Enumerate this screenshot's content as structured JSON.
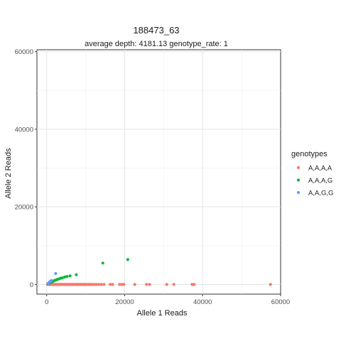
{
  "chart_data": {
    "type": "scatter",
    "title": "188473_63",
    "subtitle": "average depth:  4181.13  genotype_rate:  1",
    "xlabel": "Allele 1 Reads",
    "ylabel": "Allele 2 Reads",
    "xlim": [
      -2500,
      60000
    ],
    "ylim": [
      -2500,
      60500
    ],
    "xticks": [
      0,
      20000,
      40000,
      60000
    ],
    "yticks": [
      0,
      20000,
      40000,
      60000
    ],
    "xtick_labels": [
      "0",
      "20000",
      "40000",
      "60000"
    ],
    "ytick_labels": [
      "0",
      "20000",
      "40000",
      "60000"
    ],
    "grid": true,
    "legend": {
      "title": "genotypes",
      "placement": "right"
    },
    "series": [
      {
        "name": "A,A,A,A",
        "color": "#F8766D",
        "points": [
          [
            200,
            0
          ],
          [
            500,
            0
          ],
          [
            800,
            0
          ],
          [
            1100,
            0
          ],
          [
            1400,
            0
          ],
          [
            1700,
            0
          ],
          [
            2000,
            0
          ],
          [
            2300,
            0
          ],
          [
            2600,
            0
          ],
          [
            2900,
            0
          ],
          [
            3200,
            0
          ],
          [
            3500,
            0
          ],
          [
            3800,
            0
          ],
          [
            4100,
            0
          ],
          [
            4400,
            0
          ],
          [
            4700,
            0
          ],
          [
            5000,
            0
          ],
          [
            5300,
            0
          ],
          [
            5600,
            0
          ],
          [
            5900,
            0
          ],
          [
            6200,
            0
          ],
          [
            6500,
            0
          ],
          [
            6800,
            0
          ],
          [
            7100,
            0
          ],
          [
            7400,
            0
          ],
          [
            7700,
            0
          ],
          [
            8000,
            0
          ],
          [
            8300,
            0
          ],
          [
            8600,
            0
          ],
          [
            8900,
            0
          ],
          [
            9200,
            0
          ],
          [
            9500,
            0
          ],
          [
            9800,
            0
          ],
          [
            10200,
            0
          ],
          [
            10600,
            0
          ],
          [
            11000,
            0
          ],
          [
            11400,
            0
          ],
          [
            11800,
            0
          ],
          [
            12300,
            0
          ],
          [
            12800,
            0
          ],
          [
            13400,
            0
          ],
          [
            14000,
            0
          ],
          [
            14700,
            0
          ],
          [
            16300,
            0
          ],
          [
            16900,
            0
          ],
          [
            18700,
            0
          ],
          [
            19300,
            0
          ],
          [
            19800,
            0
          ],
          [
            22600,
            0
          ],
          [
            25600,
            0
          ],
          [
            26400,
            0
          ],
          [
            30800,
            0
          ],
          [
            32600,
            0
          ],
          [
            37300,
            0
          ],
          [
            37800,
            0
          ],
          [
            57400,
            0
          ]
        ]
      },
      {
        "name": "A,A,A,G",
        "color": "#00BA38",
        "points": [
          [
            300,
            150
          ],
          [
            600,
            300
          ],
          [
            900,
            450
          ],
          [
            1200,
            600
          ],
          [
            1500,
            750
          ],
          [
            1800,
            900
          ],
          [
            2100,
            1050
          ],
          [
            2400,
            1150
          ],
          [
            2800,
            1300
          ],
          [
            3200,
            1450
          ],
          [
            3600,
            1600
          ],
          [
            4000,
            1700
          ],
          [
            4600,
            1900
          ],
          [
            5200,
            2050
          ],
          [
            6000,
            2200
          ],
          [
            7600,
            2500
          ],
          [
            14400,
            5500
          ],
          [
            20800,
            6400
          ]
        ]
      },
      {
        "name": "A,A,G,G",
        "color": "#619CFF",
        "points": [
          [
            300,
            250
          ],
          [
            600,
            500
          ],
          [
            900,
            800
          ],
          [
            1200,
            1000
          ],
          [
            2300,
            2800
          ]
        ]
      }
    ]
  }
}
